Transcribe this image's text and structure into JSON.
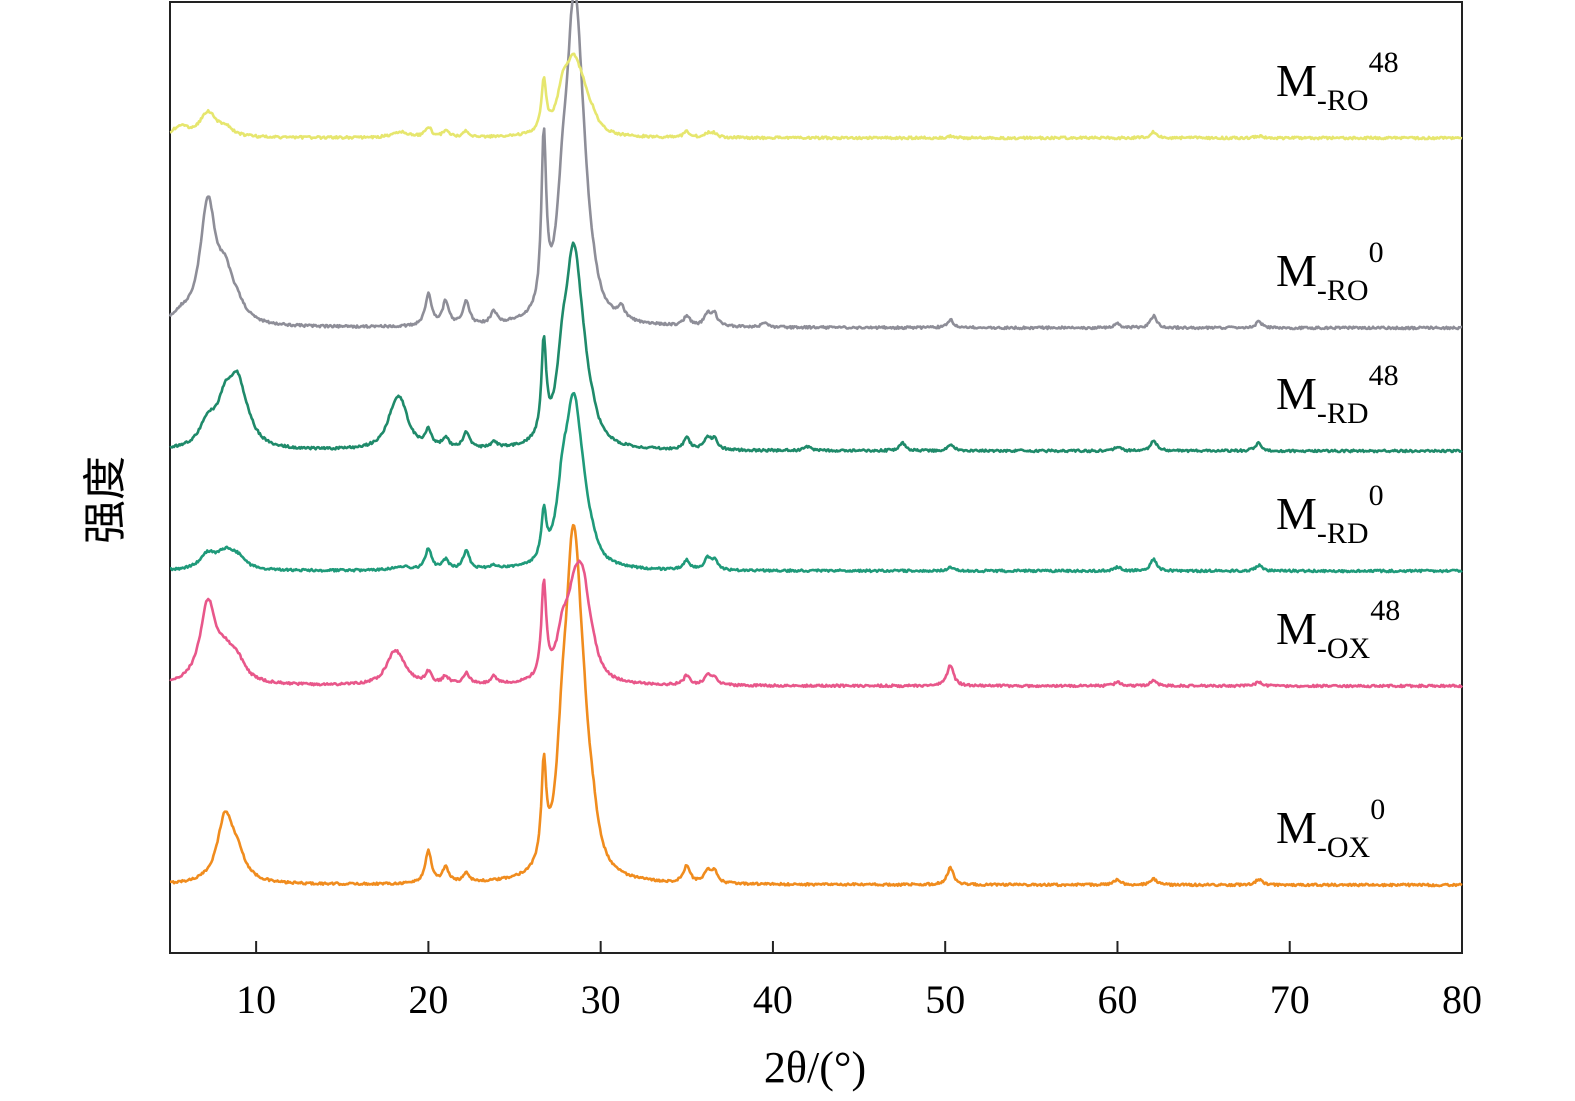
{
  "chart_data": {
    "type": "line",
    "xlabel": "2θ/(°)",
    "ylabel": "强度",
    "xlim": [
      5,
      80
    ],
    "xticks": [
      10,
      20,
      30,
      40,
      50,
      60,
      70,
      80
    ],
    "legend_placement": "right",
    "grid": false,
    "peaks_x": [
      5.6,
      7.2,
      8.2,
      8.9,
      9.5,
      18.0,
      18.4,
      20.0,
      21.0,
      22.2,
      23.8,
      26.7,
      27.8,
      28.3,
      28.6,
      29.0,
      29.5,
      31.2,
      35.0,
      36.2,
      36.6,
      39.5,
      42.0,
      47.5,
      50.3,
      60.0,
      62.1,
      68.2
    ],
    "series": [
      {
        "name": "M-OX0",
        "label": {
          "main": "M",
          "sub": "-OX",
          "sup": "0"
        },
        "color": "#f08c1e",
        "peaks_y": [
          0,
          0,
          0.34,
          0.12,
          0,
          0,
          0,
          0.17,
          0.08,
          0.05,
          0,
          0.5,
          0.55,
          0.95,
          0.8,
          0.4,
          0.18,
          0,
          0.09,
          0.06,
          0.06,
          0,
          0,
          0,
          0.09,
          0.03,
          0.03,
          0.03
        ]
      },
      {
        "name": "M-OX48",
        "label": {
          "main": "M",
          "sub": "-OX",
          "sup": "48"
        },
        "color": "#e8578a",
        "peaks_y": [
          0,
          0.42,
          0.12,
          0.1,
          0,
          0.14,
          0.06,
          0.06,
          0.04,
          0.06,
          0.04,
          0.5,
          0.22,
          0.16,
          0.28,
          0.36,
          0.1,
          0,
          0.05,
          0.05,
          0.04,
          0,
          0,
          0,
          0.11,
          0.02,
          0.03,
          0.02
        ]
      },
      {
        "name": "M-RD0",
        "label": {
          "main": "M",
          "sub": "-RD",
          "sup": "0"
        },
        "color": "#1f9a7a",
        "peaks_y": [
          0,
          0.08,
          0.08,
          0.06,
          0,
          0,
          0.02,
          0.11,
          0.05,
          0.1,
          0.02,
          0.25,
          0.35,
          0.45,
          0.4,
          0.18,
          0.06,
          0,
          0.05,
          0.06,
          0.05,
          0,
          0,
          0,
          0.02,
          0.02,
          0.06,
          0.03
        ]
      },
      {
        "name": "M-RD48",
        "label": {
          "main": "M",
          "sub": "-RD",
          "sup": "48"
        },
        "color": "#1f8a6a",
        "peaks_y": [
          0,
          0.12,
          0.2,
          0.28,
          0.06,
          0.12,
          0.18,
          0.08,
          0.05,
          0.08,
          0.03,
          0.47,
          0.35,
          0.5,
          0.45,
          0.2,
          0.08,
          0,
          0.06,
          0.06,
          0.05,
          0,
          0.02,
          0.04,
          0.03,
          0.02,
          0.05,
          0.04
        ]
      },
      {
        "name": "M-RO0",
        "label": {
          "main": "M",
          "sub": "-RO",
          "sup": "0"
        },
        "color": "#8e8e98",
        "peaks_y": [
          0.04,
          0.6,
          0.2,
          0.06,
          0,
          0,
          0,
          0.16,
          0.12,
          0.12,
          0.06,
          0.85,
          0.45,
          0.7,
          0.88,
          0.35,
          0.08,
          0.06,
          0.05,
          0.06,
          0.06,
          0.02,
          0,
          0,
          0.04,
          0.02,
          0.06,
          0.03
        ]
      },
      {
        "name": "M-RO48",
        "label": {
          "main": "M",
          "sub": "-RO",
          "sup": "48"
        },
        "color": "#e6e66e",
        "peaks_y": [
          0.05,
          0.12,
          0.04,
          0,
          0,
          0,
          0.03,
          0.05,
          0.03,
          0.03,
          0,
          0.26,
          0.2,
          0.18,
          0.16,
          0.12,
          0.06,
          0,
          0.03,
          0.02,
          0.02,
          0,
          0,
          0,
          0.01,
          0,
          0.03,
          0.01
        ]
      }
    ]
  }
}
